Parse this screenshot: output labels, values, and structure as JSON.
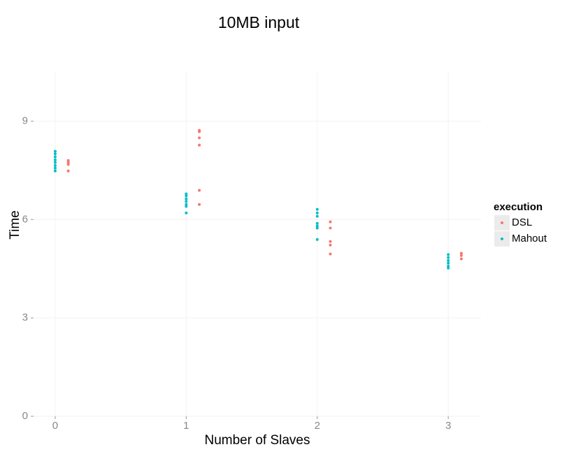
{
  "chart_data": {
    "type": "scatter",
    "title": "10MB input",
    "x_label": "Number of Slaves",
    "y_label": "Time",
    "legend_title": "execution",
    "legend_position": "right",
    "grid": true,
    "xlim": [
      -0.165,
      3.25
    ],
    "xticks": [
      0,
      1,
      2,
      3
    ],
    "ylim": [
      0,
      10.5
    ],
    "yticks": [
      0,
      3,
      6,
      9
    ],
    "series": [
      {
        "name": "DSL",
        "color": "#F8766D",
        "x": [
          0.1,
          0.1,
          0.1,
          0.1,
          1.1,
          1.1,
          1.1,
          1.1,
          1.1,
          1.1,
          2.1,
          2.1,
          2.1,
          2.1,
          2.1,
          3.1,
          3.1,
          3.1
        ],
        "values": [
          7.8,
          7.74,
          7.68,
          7.48,
          8.72,
          8.68,
          8.49,
          8.27,
          6.89,
          6.46,
          5.93,
          5.74,
          5.33,
          5.22,
          4.95,
          4.97,
          4.9,
          4.8
        ]
      },
      {
        "name": "Mahout",
        "color": "#00BFC4",
        "x": [
          0,
          0,
          0,
          0,
          0,
          0,
          0,
          0,
          1,
          1,
          1,
          1,
          1,
          1,
          1,
          2,
          2,
          2,
          2,
          2,
          2,
          2,
          3,
          3,
          3,
          3,
          3,
          3
        ],
        "values": [
          8.08,
          8.0,
          7.91,
          7.82,
          7.74,
          7.65,
          7.57,
          7.48,
          6.78,
          6.72,
          6.63,
          6.55,
          6.46,
          6.4,
          6.2,
          6.31,
          6.2,
          6.1,
          5.88,
          5.8,
          5.74,
          5.39,
          4.93,
          4.84,
          4.75,
          4.67,
          4.58,
          4.52
        ]
      }
    ]
  }
}
